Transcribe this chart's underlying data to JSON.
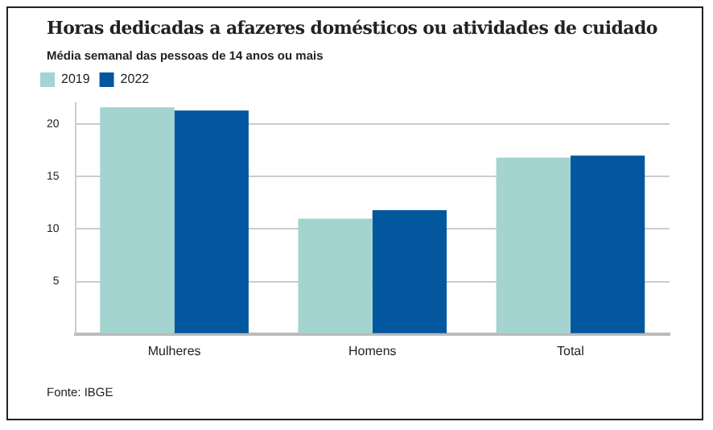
{
  "chart_data": {
    "type": "bar",
    "title": "Horas dedicadas a afazeres domésticos ou atividades de cuidado",
    "subtitle": "Média semanal das pessoas de 14 anos ou mais",
    "categories": [
      "Mulheres",
      "Homens",
      "Total"
    ],
    "series": [
      {
        "name": "2019",
        "color": "#a3d4cf",
        "values": [
          21.6,
          11.0,
          16.8
        ]
      },
      {
        "name": "2022",
        "color": "#02579e",
        "values": [
          21.3,
          11.8,
          17.0
        ]
      }
    ],
    "ylim": [
      0,
      22
    ],
    "yticks": [
      {
        "value": 0,
        "label": null
      },
      5,
      10,
      15,
      20
    ],
    "grid": "y",
    "legend": "top left",
    "annotations": [
      "Fonte: IBGE"
    ]
  }
}
